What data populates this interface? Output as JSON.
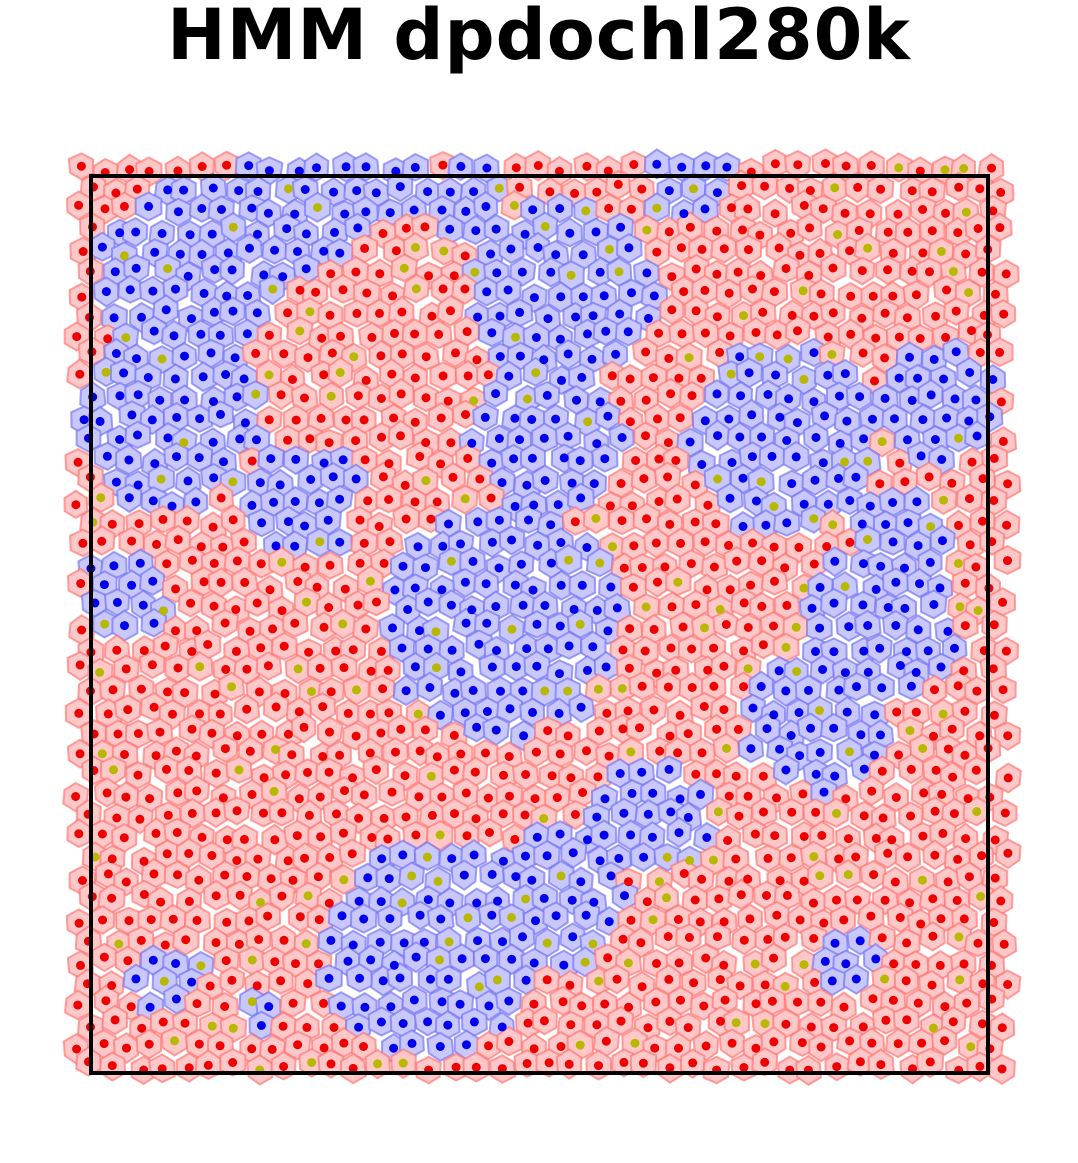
{
  "title": "HMM dpdochl280k",
  "legend_colors": {
    "red_region_fill": "#ffc8c8",
    "red_region_edge": "#ff7070",
    "blue_region_fill": "#c8c8ff",
    "blue_region_edge": "#7070f0",
    "red_point": "#ee0000",
    "blue_point": "#0000ee",
    "olive_point": "#b8b800"
  }
}
